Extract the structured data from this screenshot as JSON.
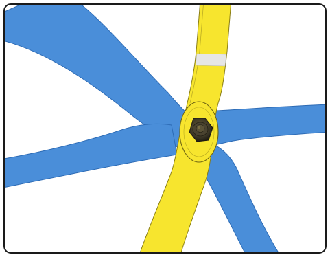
{
  "diagram": {
    "background": "#ffffff",
    "border_color": "#1a1a1a",
    "colors": {
      "blue_member": "#4a8ed9",
      "blue_edge": "#2d6bb5",
      "yellow_member": "#f7e52e",
      "yellow_edge": "#8a7e14",
      "stripe": "#e6e6e6",
      "nut": "#3b3626",
      "nut_highlight": "#6b5f35"
    },
    "parts": {
      "upper_left_brace": "blue-brace",
      "right_brace": "blue-brace",
      "lower_left_brace": "blue-brace",
      "lower_right_brace": "blue-brace",
      "yellow_arm": "yellow-arm",
      "marker_stripe": "white-stripe",
      "fastener": "hex-nut"
    }
  }
}
